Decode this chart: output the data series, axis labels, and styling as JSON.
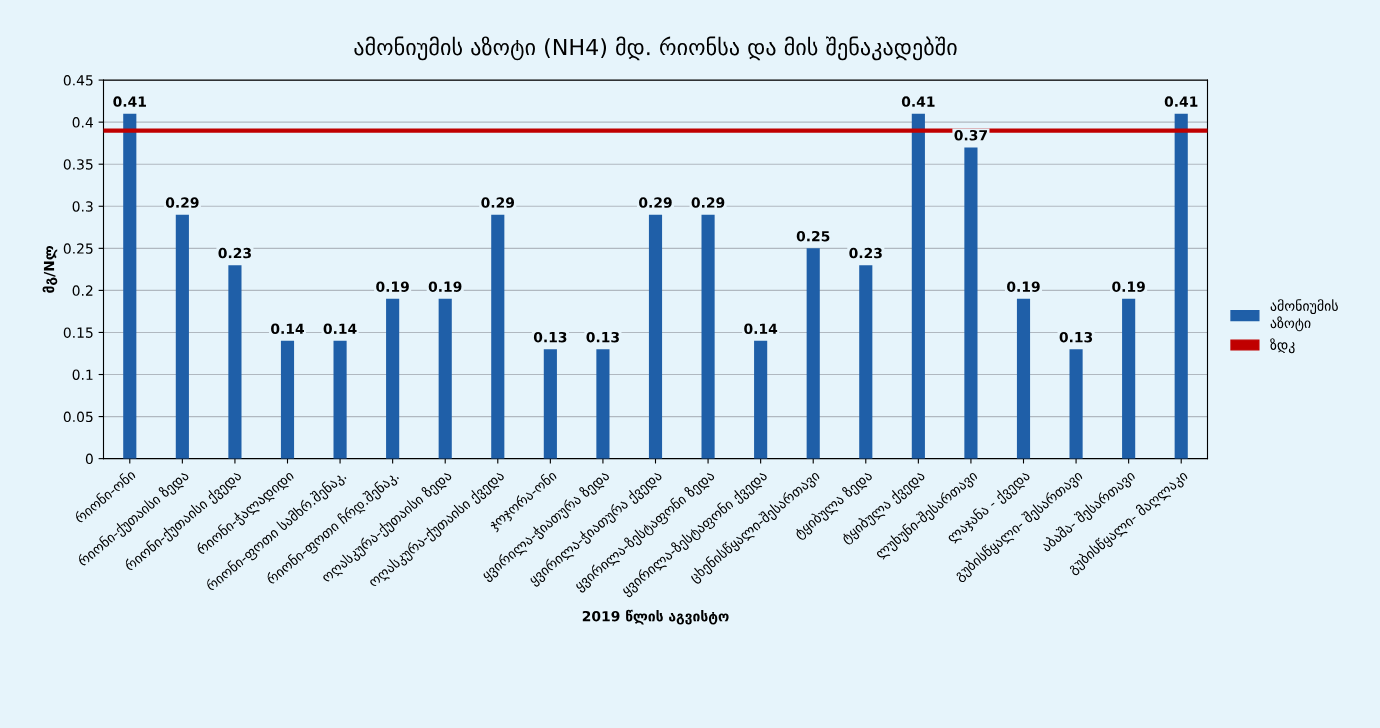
{
  "chart_data": {
    "type": "bar",
    "title": "ამონიუმის აზოტი (NH4) მდ. რიონსა და მის შენაკადებში",
    "xlabel": "2019 წლის აგვისტო",
    "ylabel": "მგ/Nლ",
    "categories": [
      "რიონი-ონი",
      "რიონი-ქუთაისი ზედა",
      "რიონი-ქუთაისი ქვედა",
      "რიონი-ჭალადიდი",
      "რიონი-ფოთი სამხრ.შენაკ.",
      "რიონი-ფოთი ჩრდ.შენაკ.",
      "ოღასკურა-ქუთაისი ზედა",
      "ოღასკურა-ქუთაისი ქვედა",
      "ჯოჯორა-ონი",
      "ყვირილა-ჭიათურა ზედა",
      "ყვირილა-ჭიათურა ქვედა",
      "ყვირილა-ზესტაფონი ზედა",
      "ყვირილა-ზესტაფონი ქვედა",
      "ცხენისწყალი-შესართავი",
      "ტყიბულა ზედა",
      "ტყიბულა ქვედა",
      "ლუხუნი-შესართავი",
      "ლაჯანა - ქვედა",
      "გუბისწყალი- შესართავი",
      "აბაშა- შესართავი",
      "გუბისწყალი- მაღლაკი"
    ],
    "series": [
      {
        "name": "ამონიუმის აზოტი",
        "color": "#1f5fa8",
        "values": [
          0.41,
          0.29,
          0.23,
          0.14,
          0.14,
          0.19,
          0.19,
          0.29,
          0.13,
          0.13,
          0.29,
          0.29,
          0.14,
          0.25,
          0.23,
          0.41,
          0.37,
          0.19,
          0.13,
          0.19,
          0.41
        ]
      }
    ],
    "ref_lines": [
      {
        "axis": "y",
        "value": 0.39,
        "label": "ზდკ",
        "color": "#c00000"
      }
    ],
    "ylim": [
      0,
      0.45
    ],
    "yticks": [
      0,
      0.05,
      0.1,
      0.15,
      0.2,
      0.25,
      0.3,
      0.35,
      0.4,
      0.45
    ],
    "data_labels": true,
    "grid": "y",
    "legend": "right"
  }
}
